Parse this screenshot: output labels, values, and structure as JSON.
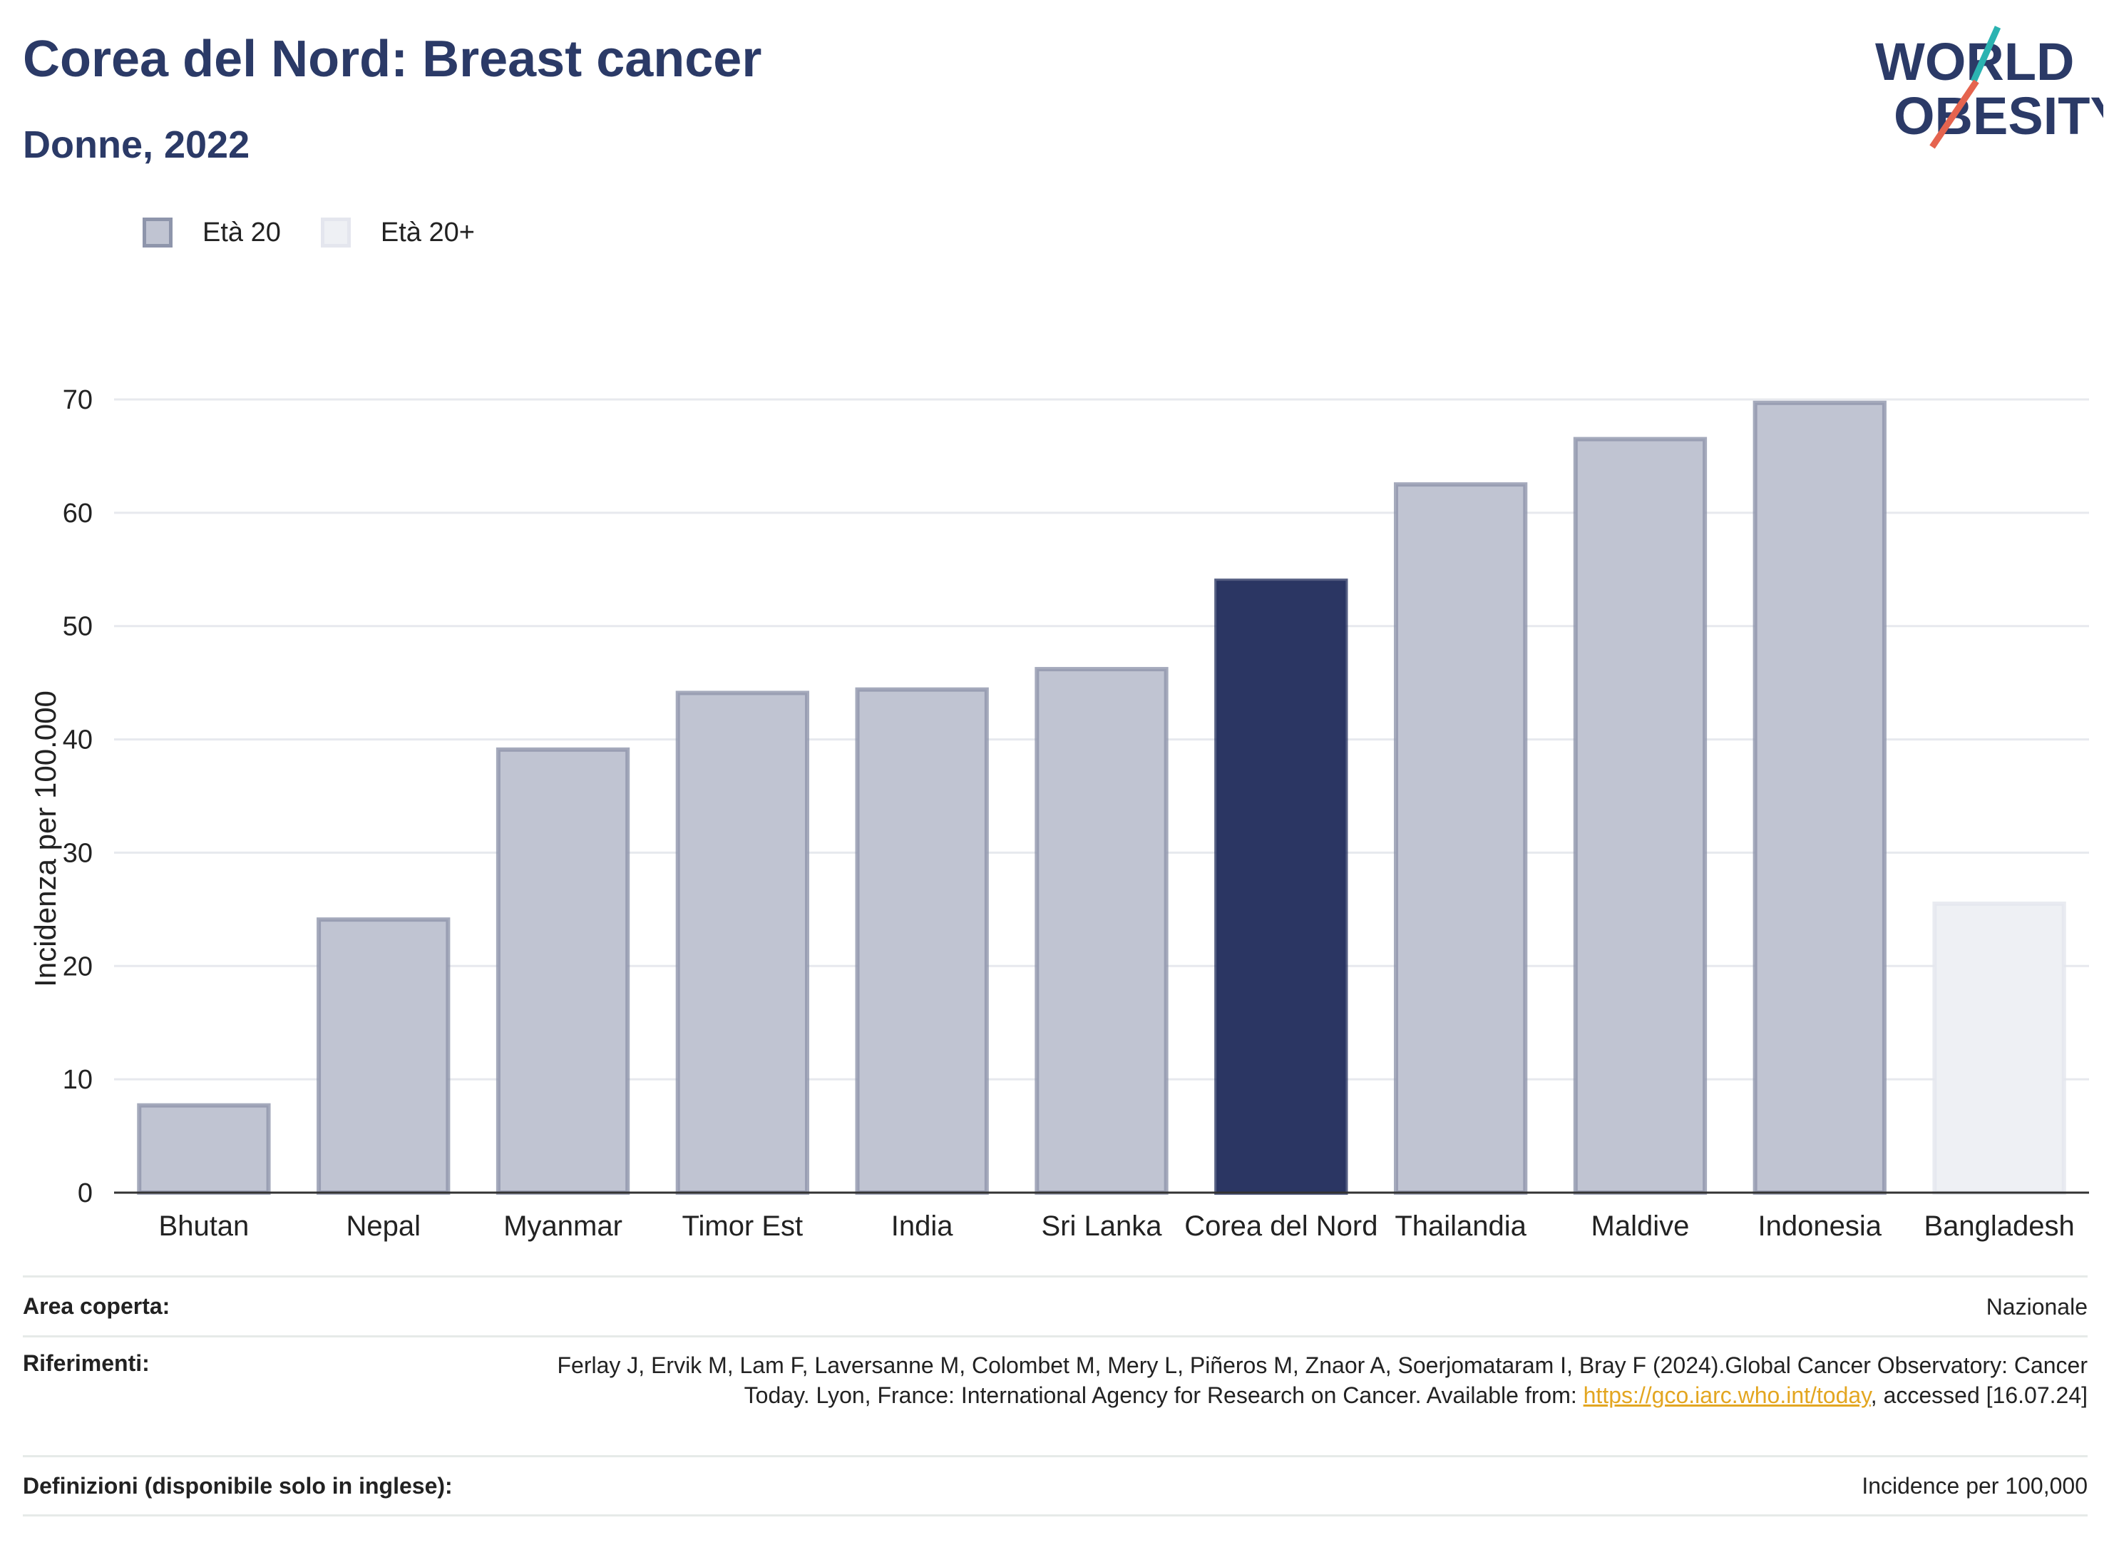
{
  "header": {
    "title": "Corea del Nord: Breast cancer",
    "subtitle": "Donne, 2022"
  },
  "logo": {
    "line1": "WORLD",
    "line2": "OBESITY",
    "accent_colors": [
      "#2bb3b1",
      "#e5644f"
    ]
  },
  "legend": {
    "items": [
      {
        "label": "Età 20",
        "color": "#c0c4d2"
      },
      {
        "label": "Età 20+",
        "color": "#eef0f4"
      }
    ]
  },
  "chart_data": {
    "type": "bar",
    "ylabel": "Incidenza per 100.000",
    "ylim": [
      0,
      70
    ],
    "yticks": [
      0,
      10,
      20,
      30,
      40,
      50,
      60,
      70
    ],
    "grid": true,
    "categories": [
      "Bhutan",
      "Nepal",
      "Myanmar",
      "Timor Est",
      "India",
      "Sri Lanka",
      "Corea del Nord",
      "Thailandia",
      "Maldive",
      "Indonesia",
      "Bangladesh"
    ],
    "values": [
      7.7,
      24.1,
      39.1,
      44.1,
      44.4,
      46.2,
      54.0,
      62.5,
      66.5,
      69.7,
      25.5
    ],
    "groups": [
      "Età 20",
      "Età 20",
      "Età 20",
      "Età 20",
      "Età 20",
      "Età 20",
      "Età 20",
      "Età 20",
      "Età 20",
      "Età 20",
      "Età 20+"
    ],
    "highlight": "Corea del Nord",
    "colors": {
      "age20": "#c0c4d2",
      "age20plus": "#eef0f4",
      "highlight": "#2b3663"
    }
  },
  "footer": {
    "rows": [
      {
        "label": "Area coperta:",
        "value": "Nazionale"
      },
      {
        "label": "Riferimenti:",
        "value_pre": "Ferlay J, Ervik M, Lam F, Laversanne M, Colombet M, Mery L, Piñeros M, Znaor A, Soerjomataram I, Bray F (2024).Global Cancer Observatory: Cancer Today. Lyon, France: International Agency for Research on Cancer. Available from: ",
        "link": "https://gco.iarc.who.int/today",
        "value_post": ", accessed [16.07.24]"
      },
      {
        "label": "Definizioni (disponibile solo in inglese):",
        "value": "Incidence per 100,000"
      }
    ]
  }
}
